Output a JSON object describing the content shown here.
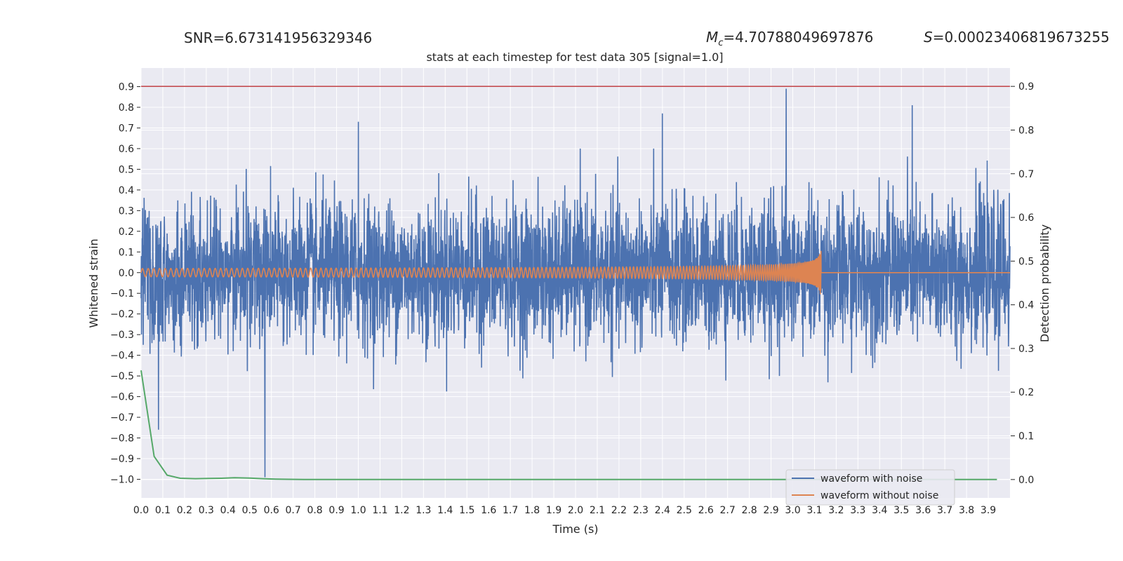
{
  "header": {
    "snr": "SNR=6.673141956329346",
    "mc_symbol": "M",
    "mc_sub": "c",
    "mc_value": "=4.70788049697876",
    "s_symbol": "S",
    "s_value": "=0.00023406819673255"
  },
  "colors": {
    "plot_bg": "#eaeaf2",
    "grid": "#ffffff",
    "noisy": "#4c72b0",
    "clean": "#dd8452",
    "prob": "#55a868",
    "threshold": "#c44e52"
  },
  "chart_data": {
    "type": "line",
    "title": "stats at each timestep for test data 305 [signal=1.0]",
    "xlabel": "Time (s)",
    "ylabel": "Whitened strain",
    "y2label": "Detection probability",
    "xlim": [
      0.0,
      4.0
    ],
    "ylim": [
      -1.09,
      0.99
    ],
    "y2lim": [
      -0.042,
      0.942
    ],
    "grid": true,
    "legend_position": "lower-right",
    "x_ticks": [
      "0.0",
      "0.1",
      "0.2",
      "0.3",
      "0.4",
      "0.5",
      "0.6",
      "0.7",
      "0.8",
      "0.9",
      "1.0",
      "1.1",
      "1.2",
      "1.3",
      "1.4",
      "1.5",
      "1.6",
      "1.7",
      "1.8",
      "1.9",
      "2.0",
      "2.1",
      "2.2",
      "2.3",
      "2.4",
      "2.5",
      "2.6",
      "2.7",
      "2.8",
      "2.9",
      "3.0",
      "3.1",
      "3.2",
      "3.3",
      "3.4",
      "3.5",
      "3.6",
      "3.7",
      "3.8",
      "3.9"
    ],
    "y_ticks": [
      "0.9",
      "0.8",
      "0.7",
      "0.6",
      "0.5",
      "0.4",
      "0.3",
      "0.2",
      "0.1",
      "0.0",
      "−0.1",
      "−0.2",
      "−0.3",
      "−0.4",
      "−0.5",
      "−0.6",
      "−0.7",
      "−0.8",
      "−0.9",
      "−1.0"
    ],
    "y2_ticks": [
      "0.9",
      "0.8",
      "0.7",
      "0.6",
      "0.5",
      "0.4",
      "0.3",
      "0.2",
      "0.1",
      "0.0"
    ],
    "series": [
      {
        "name": "waveform with noise",
        "axis": "left",
        "description_values": {
          "x_range": [
            0.0,
            4.0
          ],
          "sample_peaks": [
            {
              "x": 0.08,
              "y": -0.76
            },
            {
              "x": 0.57,
              "y": -0.99
            },
            {
              "x": 1.0,
              "y": 0.73
            },
            {
              "x": 2.4,
              "y": 0.77
            },
            {
              "x": 2.97,
              "y": 0.89
            },
            {
              "x": 3.55,
              "y": 0.81
            }
          ],
          "typical_amplitude": [
            -0.4,
            0.4
          ]
        }
      },
      {
        "name": "waveform without noise",
        "axis": "left",
        "description_values": {
          "x_range": [
            0.0,
            4.0
          ],
          "merger_time": 3.13,
          "initial_amplitude": 0.02,
          "peak_amplitude": 0.14,
          "post_merger_value": 0.0
        }
      },
      {
        "axis": "right",
        "x": [
          0.0,
          0.06,
          0.12,
          0.18,
          0.25,
          0.31,
          0.37,
          0.43,
          0.5,
          0.56,
          0.62,
          0.68,
          0.75,
          1.0,
          1.5,
          2.0,
          2.5,
          3.0,
          3.5,
          3.94
        ],
        "y": [
          0.25,
          0.053,
          0.01,
          0.003,
          0.002,
          0.0025,
          0.003,
          0.004,
          0.0035,
          0.002,
          0.001,
          0.0005,
          0.0002,
          0.0001,
          0.0001,
          0.0001,
          0.0001,
          0.0001,
          0.0001,
          0.0001
        ]
      },
      {
        "axis": "right",
        "x": [
          0.0,
          4.0
        ],
        "y": [
          0.9,
          0.9
        ]
      }
    ]
  }
}
